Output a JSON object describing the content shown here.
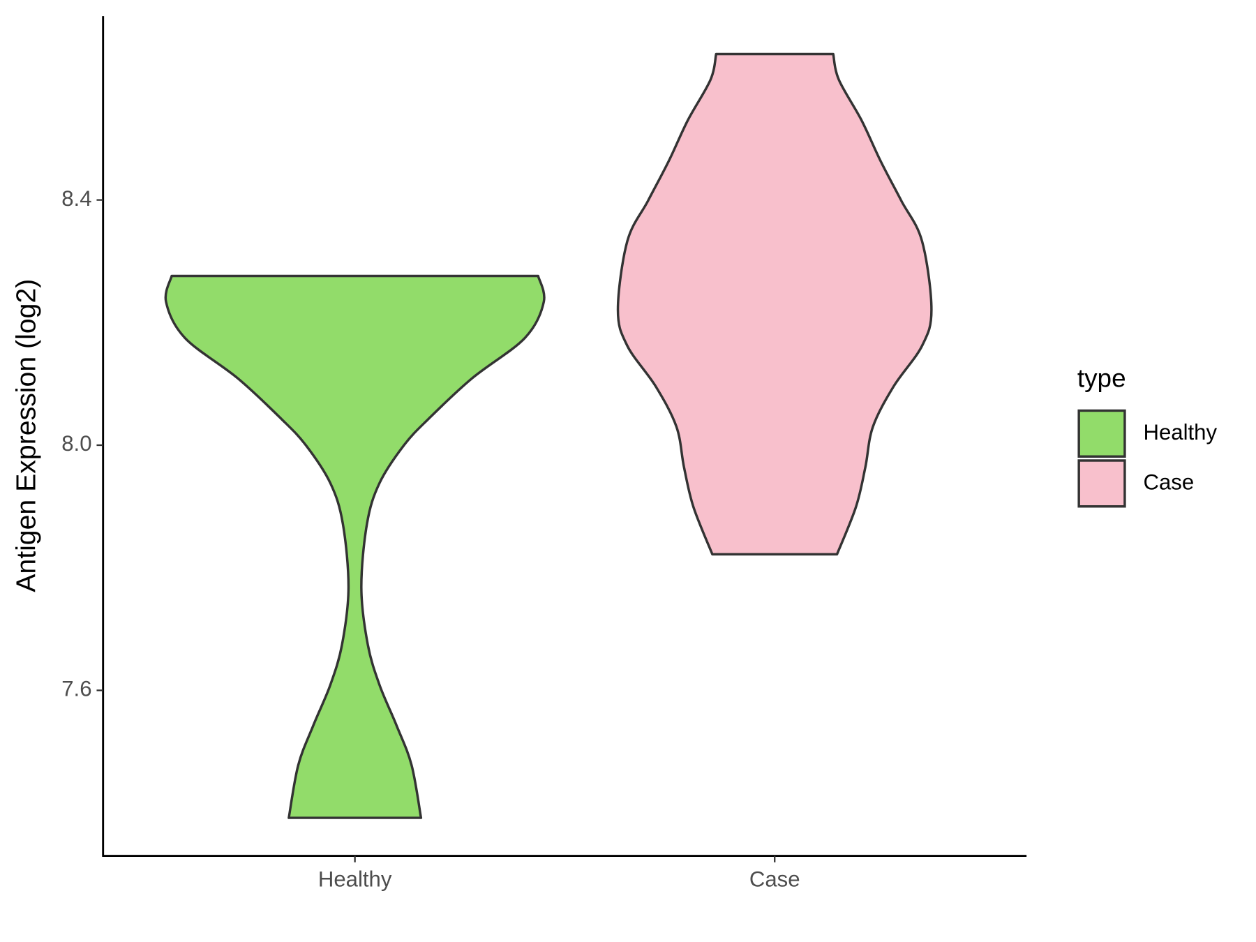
{
  "chart_data": {
    "type": "violin",
    "ylabel": "Antigen Expression (log2)",
    "categories": [
      "Healthy",
      "Case"
    ],
    "ylim": [
      7.33,
      8.7
    ],
    "yticks": [
      {
        "value": 7.6,
        "label": "7.6"
      },
      {
        "value": 8.0,
        "label": "8.0"
      },
      {
        "value": 8.4,
        "label": "8.4"
      }
    ],
    "legend_title": "type",
    "legend": "right",
    "series": [
      {
        "name": "Healthy",
        "color": "#92dc6a",
        "y": [
          8.276,
          8.234,
          8.175,
          8.109,
          8.043,
          8.0,
          7.938,
          7.872,
          7.767,
          7.675,
          7.609,
          7.543,
          7.478,
          7.392
        ],
        "density": [
          0.97,
          1.0,
          0.9,
          0.62,
          0.39,
          0.26,
          0.13,
          0.064,
          0.034,
          0.068,
          0.13,
          0.22,
          0.3,
          0.35
        ]
      },
      {
        "name": "Case",
        "color": "#f8c0cc",
        "y": [
          8.638,
          8.596,
          8.53,
          8.464,
          8.399,
          8.333,
          8.221,
          8.162,
          8.096,
          8.03,
          7.964,
          7.899,
          7.822
        ],
        "density": [
          0.31,
          0.34,
          0.46,
          0.56,
          0.67,
          0.78,
          0.83,
          0.78,
          0.63,
          0.52,
          0.48,
          0.43,
          0.33
        ]
      }
    ]
  }
}
